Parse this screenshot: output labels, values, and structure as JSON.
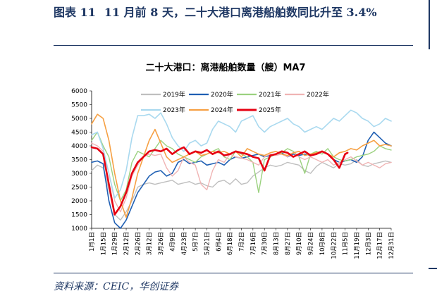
{
  "figure": {
    "number": "图表 11",
    "title": "11 月前 8 天，二十大港口离港船舶数同比升至 3.4%",
    "source": "资料来源：CEIC，华创证券"
  },
  "chart_data": {
    "type": "line",
    "title": "二十大港口：离港船舶数量（艘）MA7",
    "xlabel": "",
    "ylabel": "",
    "ylim": [
      1000,
      6000
    ],
    "yticks": [
      1000,
      1500,
      2000,
      2500,
      3000,
      3500,
      4000,
      4500,
      5000,
      5500,
      6000
    ],
    "x_tick_labels": [
      "1月1日",
      "1月15日",
      "1月29日",
      "2月12日",
      "2月26日",
      "3月12日",
      "3月26日",
      "4月9日",
      "4月23日",
      "5月7日",
      "5月21日",
      "6月4日",
      "6月18日",
      "7月2日",
      "7月16日",
      "7月30日",
      "8月13日",
      "8月27日",
      "9月10日",
      "9月24日",
      "10月8日",
      "10月22日",
      "11月5日",
      "11月19日",
      "12月3日",
      "12月17日",
      "12月31日"
    ],
    "x_tick_days": [
      1,
      15,
      29,
      43,
      57,
      71,
      85,
      99,
      113,
      127,
      141,
      155,
      169,
      183,
      197,
      211,
      225,
      239,
      253,
      267,
      281,
      295,
      309,
      323,
      337,
      351,
      365
    ],
    "x_range": [
      1,
      365
    ],
    "grid": false,
    "legend_position": "top",
    "series": [
      {
        "name": "2019年",
        "color": "#bfbfbf",
        "width": 1.4,
        "x": [
          1,
          8,
          15,
          22,
          29,
          36,
          43,
          50,
          57,
          64,
          71,
          78,
          85,
          92,
          99,
          106,
          113,
          120,
          127,
          134,
          141,
          148,
          155,
          162,
          169,
          176,
          183,
          190,
          197,
          204,
          211,
          218,
          225,
          232,
          239,
          246,
          253,
          260,
          267,
          274,
          281,
          288,
          295,
          302,
          309,
          316,
          323,
          330,
          337,
          344,
          351,
          358,
          365
        ],
        "y": [
          3100,
          3300,
          3200,
          2400,
          1500,
          1300,
          1600,
          2000,
          2500,
          2600,
          2650,
          2600,
          2650,
          2700,
          2750,
          2600,
          2650,
          2700,
          2600,
          2650,
          2550,
          2500,
          2700,
          2750,
          2600,
          2800,
          2600,
          2650,
          2900,
          3050,
          3200,
          3300,
          3250,
          3300,
          3400,
          3350,
          3300,
          3100,
          3000,
          3250,
          3400,
          3300,
          3200,
          3350,
          3300,
          3350,
          3500,
          3300,
          3250,
          3350,
          3400,
          3450,
          3400
        ]
      },
      {
        "name": "2020年",
        "color": "#1f5fb3",
        "width": 1.6,
        "x": [
          1,
          8,
          15,
          22,
          29,
          36,
          43,
          50,
          57,
          64,
          71,
          78,
          85,
          92,
          99,
          106,
          113,
          120,
          127,
          134,
          141,
          148,
          155,
          162,
          169,
          176,
          183,
          190,
          197,
          204,
          211,
          218,
          225,
          232,
          239,
          246,
          253,
          260,
          267,
          274,
          281,
          288,
          295,
          302,
          309,
          316,
          323,
          330,
          337,
          344,
          351,
          358,
          365
        ],
        "y": [
          3400,
          3450,
          3350,
          2000,
          1200,
          1000,
          1300,
          1800,
          2300,
          2600,
          2900,
          3050,
          3100,
          2900,
          3000,
          3400,
          3500,
          3350,
          3400,
          3450,
          3300,
          3350,
          3400,
          3300,
          3500,
          3600,
          3550,
          3600,
          3650,
          3700,
          3600,
          3650,
          3700,
          3750,
          3600,
          3700,
          3650,
          3700,
          3650,
          3750,
          3800,
          3700,
          3500,
          3400,
          3450,
          3500,
          3400,
          3600,
          4200,
          4500,
          4300,
          4100,
          4000
        ]
      },
      {
        "name": "2021年",
        "color": "#9bd17f",
        "width": 1.4,
        "x": [
          1,
          8,
          15,
          22,
          29,
          36,
          43,
          50,
          57,
          64,
          71,
          78,
          85,
          92,
          99,
          106,
          113,
          120,
          127,
          134,
          141,
          148,
          155,
          162,
          169,
          176,
          183,
          190,
          197,
          204,
          211,
          218,
          225,
          232,
          239,
          246,
          253,
          260,
          267,
          274,
          281,
          288,
          295,
          302,
          309,
          316,
          323,
          330,
          337,
          344,
          351,
          358,
          365
        ],
        "y": [
          4200,
          4500,
          4000,
          3600,
          2600,
          2000,
          2400,
          3400,
          3800,
          3700,
          3600,
          3900,
          4200,
          4000,
          3900,
          3700,
          3600,
          3500,
          3400,
          3600,
          3700,
          3800,
          3900,
          3600,
          3500,
          3800,
          3700,
          3600,
          3400,
          2300,
          3500,
          3600,
          3700,
          3750,
          3900,
          3800,
          3600,
          3000,
          3700,
          3800,
          3700,
          3900,
          3600,
          3500,
          3450,
          3500,
          3600,
          3650,
          3700,
          3800,
          4000,
          3900,
          3850
        ]
      },
      {
        "name": "2022年",
        "color": "#f0b4b4",
        "width": 1.4,
        "x": [
          1,
          8,
          15,
          22,
          29,
          36,
          43,
          50,
          57,
          64,
          71,
          78,
          85,
          92,
          99,
          106,
          113,
          120,
          127,
          134,
          141,
          148,
          155,
          162,
          169,
          176,
          183,
          190,
          197,
          204,
          211,
          218,
          225,
          232,
          239,
          246,
          253,
          260,
          267,
          274,
          281,
          288,
          295,
          302,
          309,
          316,
          323,
          330,
          337,
          344,
          351,
          358,
          365
        ],
        "y": [
          4100,
          4000,
          3800,
          3000,
          2000,
          1600,
          2100,
          2900,
          3300,
          3600,
          3700,
          3650,
          3700,
          3200,
          2900,
          3100,
          3600,
          3400,
          3300,
          2600,
          2400,
          3100,
          3500,
          3400,
          3700,
          3600,
          3550,
          3500,
          3400,
          3300,
          3600,
          3700,
          3650,
          3700,
          3600,
          3750,
          3600,
          3500,
          3600,
          3500,
          3400,
          3500,
          3300,
          3400,
          3500,
          3600,
          3450,
          3300,
          3400,
          3300,
          3200,
          3350,
          3400
        ]
      },
      {
        "name": "2023年",
        "color": "#a9d9ef",
        "width": 1.6,
        "x": [
          1,
          8,
          15,
          22,
          29,
          36,
          43,
          50,
          57,
          64,
          71,
          78,
          85,
          92,
          99,
          106,
          113,
          120,
          127,
          134,
          141,
          148,
          155,
          162,
          169,
          176,
          183,
          190,
          197,
          204,
          211,
          218,
          225,
          232,
          239,
          246,
          253,
          260,
          267,
          274,
          281,
          288,
          295,
          302,
          309,
          316,
          323,
          330,
          337,
          344,
          351,
          358,
          365
        ],
        "y": [
          4400,
          4500,
          3900,
          3000,
          2100,
          2400,
          3100,
          4300,
          5100,
          5100,
          5150,
          5000,
          5200,
          4800,
          4300,
          4000,
          3800,
          4100,
          4200,
          4000,
          4100,
          4600,
          4900,
          4800,
          4700,
          4500,
          4900,
          5000,
          5100,
          4700,
          4500,
          4700,
          4800,
          4900,
          5000,
          4800,
          4700,
          4500,
          4600,
          4700,
          4600,
          4800,
          5000,
          4900,
          5100,
          5300,
          5200,
          5000,
          4900,
          4700,
          4800,
          5000,
          4900
        ]
      },
      {
        "name": "2024年",
        "color": "#f6a043",
        "width": 1.6,
        "x": [
          1,
          8,
          15,
          22,
          29,
          36,
          43,
          50,
          57,
          64,
          71,
          78,
          85,
          92,
          99,
          106,
          113,
          120,
          127,
          134,
          141,
          148,
          155,
          162,
          169,
          176,
          183,
          190,
          197,
          204,
          211,
          218,
          225,
          232,
          239,
          246,
          253,
          260,
          267,
          274,
          281,
          288,
          295,
          302,
          309,
          316,
          323,
          330,
          337,
          344,
          351,
          358,
          365
        ],
        "y": [
          4800,
          5150,
          5000,
          4200,
          3000,
          2000,
          1400,
          2100,
          3000,
          3600,
          4200,
          4600,
          4100,
          3600,
          3400,
          3500,
          3600,
          3700,
          3800,
          3650,
          3700,
          3800,
          3750,
          3800,
          3700,
          3800,
          3600,
          3900,
          3800,
          3700,
          3650,
          3750,
          3800,
          3700,
          3650,
          3750,
          3800,
          3650,
          3700,
          3750,
          3800,
          3700,
          3600,
          3750,
          3800,
          3900,
          3850,
          4000,
          4100,
          4200,
          4000,
          4050,
          4000
        ]
      },
      {
        "name": "2025年",
        "color": "#e60012",
        "width": 2.6,
        "x": [
          1,
          8,
          15,
          22,
          29,
          36,
          43,
          50,
          57,
          64,
          71,
          78,
          85,
          92,
          99,
          106,
          113,
          120,
          127,
          134,
          141,
          148,
          155,
          162,
          169,
          176,
          183,
          190,
          197,
          204,
          211,
          218,
          225,
          232,
          239,
          246,
          253,
          260,
          267,
          274,
          281,
          288,
          295,
          302,
          309,
          312
        ],
        "y": [
          3950,
          3900,
          3700,
          2600,
          1500,
          1800,
          2300,
          3000,
          3400,
          3600,
          3800,
          3850,
          3800,
          3900,
          3700,
          3850,
          3950,
          3700,
          3800,
          3750,
          3850,
          3700,
          3800,
          3650,
          3700,
          3800,
          3750,
          3700,
          3600,
          3550,
          3100,
          3650,
          3700,
          3800,
          3750,
          3600,
          3700,
          3800,
          3650,
          3700,
          3800,
          3700,
          3500,
          3200,
          3700,
          3750
        ]
      }
    ]
  }
}
